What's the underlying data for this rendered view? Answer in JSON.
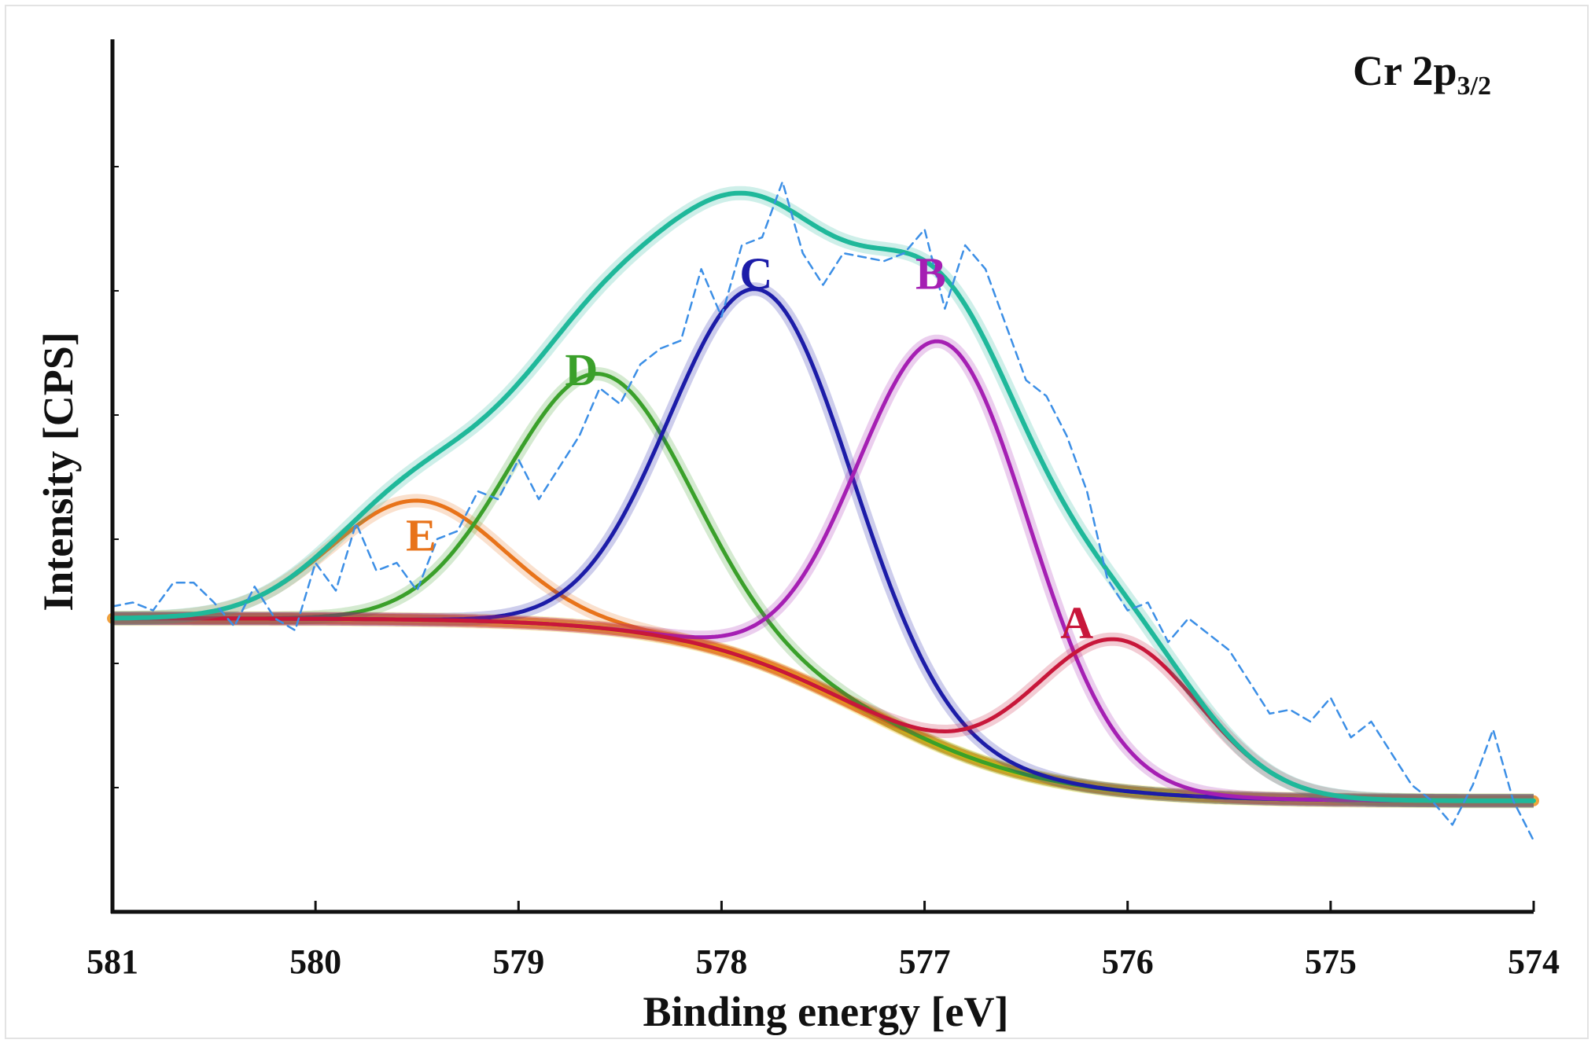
{
  "chart_data": {
    "type": "line",
    "title": "Cr 2p",
    "title_subscript": "3/2",
    "xlabel": "Binding energy [eV]",
    "ylabel": "Intensity [CPS]",
    "xlim": [
      581,
      574
    ],
    "ylim": [
      0,
      100
    ],
    "x_ticks": [
      "581",
      "580",
      "579",
      "578",
      "577",
      "576",
      "575",
      "574"
    ],
    "x_tick_values": [
      581,
      580,
      579,
      578,
      577,
      576,
      575,
      574
    ],
    "grid": false,
    "legend": "none",
    "series": [
      {
        "name": "background",
        "color": "#f2e600",
        "kind": "shirley",
        "high": 33,
        "low": 10
      },
      {
        "name": "E",
        "label": "E",
        "color": "#e8731a",
        "center": 579.5,
        "height": 15,
        "fwhm": 1.0
      },
      {
        "name": "D",
        "label": "D",
        "color": "#3aa02a",
        "center": 578.6,
        "height": 32,
        "fwhm": 1.05
      },
      {
        "name": "C",
        "label": "C",
        "color": "#1c1ca8",
        "center": 577.8,
        "height": 47,
        "fwhm": 1.05
      },
      {
        "name": "B",
        "label": "B",
        "color": "#a51fb3",
        "center": 576.9,
        "height": 51,
        "fwhm": 1.0
      },
      {
        "name": "A",
        "label": "A",
        "color": "#c8173a",
        "center": 576.05,
        "height": 19,
        "fwhm": 0.95
      },
      {
        "name": "envelope",
        "color": "#1fb89a",
        "kind": "sum"
      },
      {
        "name": "experimental",
        "color": "#3c8fe6",
        "kind": "dashed",
        "x": [
          581.0,
          580.9,
          580.8,
          580.7,
          580.6,
          580.5,
          580.4,
          580.3,
          580.2,
          580.1,
          580.0,
          579.9,
          579.8,
          579.7,
          579.6,
          579.5,
          579.4,
          579.3,
          579.2,
          579.1,
          579.0,
          578.9,
          578.8,
          578.7,
          578.6,
          578.5,
          578.4,
          578.3,
          578.2,
          578.1,
          578.0,
          577.9,
          577.8,
          577.7,
          577.6,
          577.5,
          577.4,
          577.3,
          577.2,
          577.1,
          577.0,
          576.9,
          576.8,
          576.7,
          576.6,
          576.5,
          576.4,
          576.3,
          576.2,
          576.1,
          576.0,
          575.9,
          575.8,
          575.7,
          575.6,
          575.5,
          575.4,
          575.3,
          575.2,
          575.1,
          575.0,
          574.9,
          574.8,
          574.7,
          574.6,
          574.5,
          574.4,
          574.3,
          574.2,
          574.1,
          574.0
        ],
        "y": [
          34.5,
          35,
          34,
          37.5,
          37.5,
          35,
          32,
          37,
          33,
          31.5,
          40,
          36.5,
          45,
          39,
          40,
          36.5,
          43,
          44,
          49,
          48,
          53,
          48,
          52,
          56,
          62,
          60,
          65,
          67,
          68,
          77,
          71,
          80,
          81,
          88,
          79,
          75,
          79,
          78.5,
          78,
          79,
          82,
          72,
          80,
          77,
          70,
          63,
          61,
          56,
          49,
          38,
          34,
          35,
          30,
          33,
          31,
          29,
          25,
          21,
          21.5,
          20,
          23,
          18,
          20,
          16,
          12,
          10,
          7,
          12,
          19,
          10,
          5
        ]
      }
    ]
  }
}
